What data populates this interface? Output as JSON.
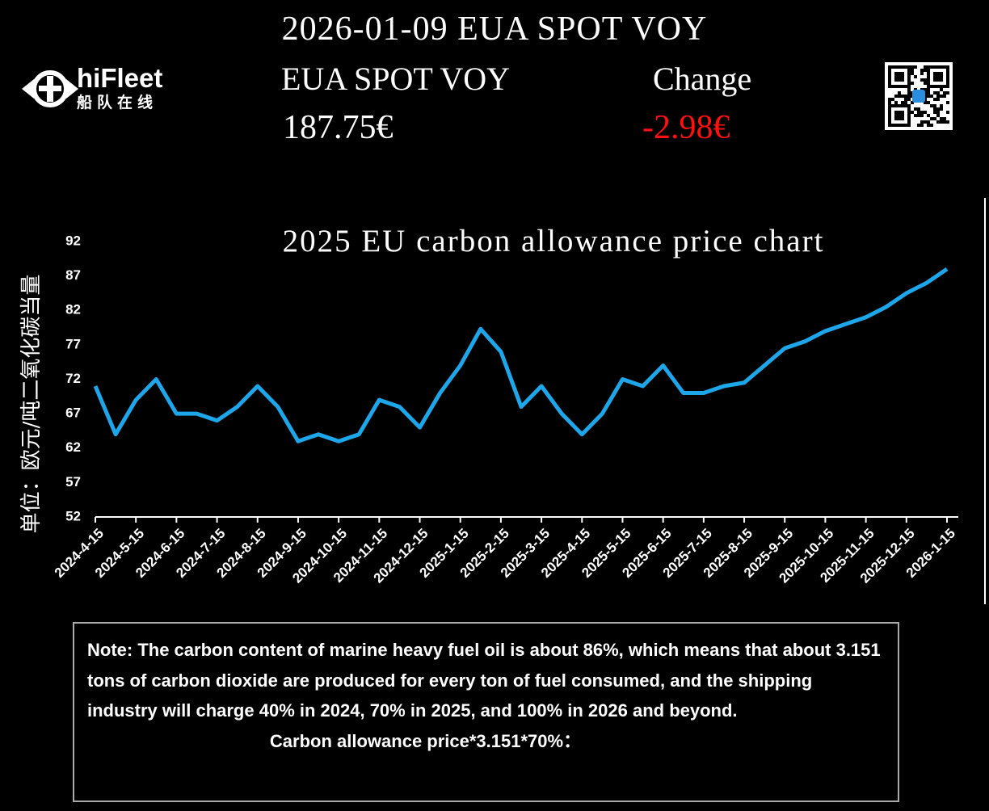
{
  "header": {
    "title": "2026-01-09 EUA SPOT VOY",
    "logo": "hiFleet",
    "logo_sub": "船队在线",
    "price_label": "EUA SPOT VOY",
    "change_label": "Change",
    "price": "187.75€",
    "change": "-2.98€"
  },
  "chart_data": {
    "type": "line",
    "title": "2025 EU carbon allowance price chart",
    "y_label": "单位：欧元/吨二氧化碳当量",
    "categories": [
      "2024-4-15",
      null,
      "2024-5-15",
      null,
      "2024-6-15",
      null,
      "2024-7-15",
      null,
      "2024-8-15",
      null,
      "2024-9-15",
      null,
      "2024-10-15",
      null,
      "2024-11-15",
      null,
      "2024-12-15",
      null,
      "2025-1-15",
      null,
      "2025-2-15",
      null,
      "2025-3-15",
      null,
      "2025-4-15",
      null,
      "2025-5-15",
      null,
      "2025-6-15",
      null,
      "2025-7-15",
      null,
      "2025-8-15",
      null,
      "2025-9-15",
      null,
      "2025-10-15",
      null,
      "2025-11-15",
      null,
      "2025-12-15",
      null,
      "2026-1-15"
    ],
    "values": [
      71,
      64,
      69,
      72,
      67,
      67,
      66,
      68,
      71,
      68,
      63,
      64,
      63,
      64,
      69,
      68,
      65,
      70,
      74,
      79.3,
      76,
      68,
      71,
      67,
      64,
      67,
      72,
      71,
      74,
      70,
      70,
      71,
      71.5,
      74,
      76.5,
      77.5,
      79,
      80,
      81,
      82.5,
      84.5,
      86,
      88
    ],
    "color": "#1ea6ea",
    "ylim": [
      52,
      92
    ],
    "yticks": [
      52,
      57,
      62,
      67,
      72,
      77,
      82,
      87,
      92
    ]
  },
  "note": {
    "text": "Note: The carbon content of marine heavy fuel oil is about 86%, which means that about 3.151 tons of carbon dioxide are produced for every ton of fuel consumed, and the shipping industry will charge 40% in 2024, 70% in 2025, and 100% in 2026 and beyond.",
    "formula": "Carbon allowance price*3.151*70%："
  }
}
